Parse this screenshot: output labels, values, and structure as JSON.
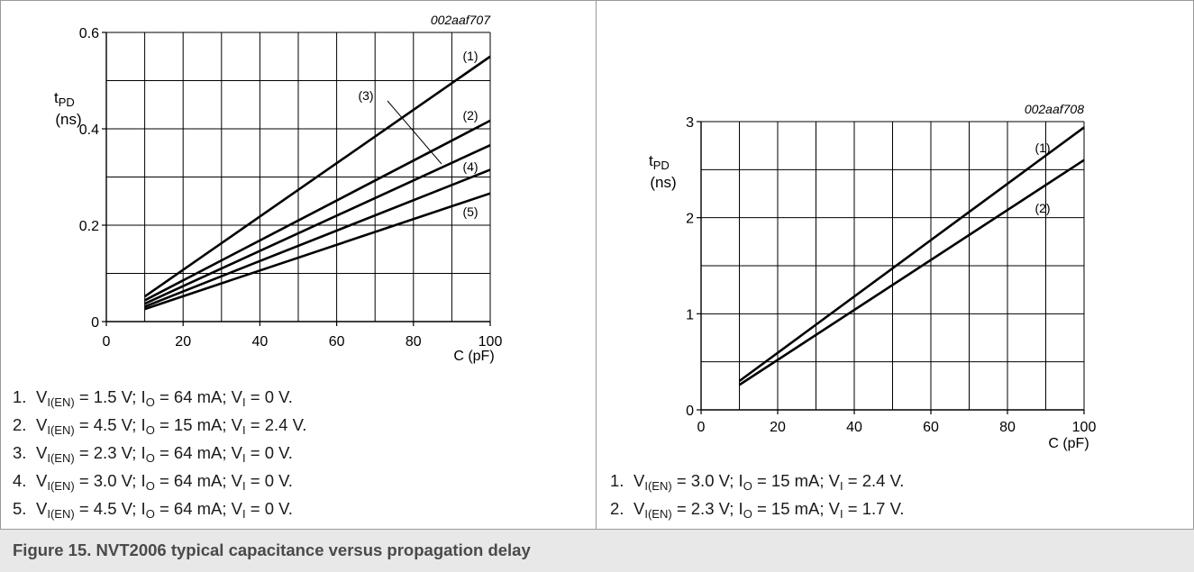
{
  "caption": "Figure 15.  NVT2006 typical capacitance versus propagation delay",
  "chart_data": [
    {
      "type": "line",
      "id_label": "002aaf707",
      "ylabel_main": "t",
      "ylabel_sub": "PD",
      "yunit": "(ns)",
      "xlabel": "C (pF)",
      "xlim": [
        0,
        100
      ],
      "ylim": [
        0,
        0.6
      ],
      "xticks": [
        0,
        20,
        40,
        60,
        80,
        100
      ],
      "yticks": [
        0,
        0.2,
        0.4,
        0.6
      ],
      "ytick_labels": [
        "0",
        "0.2",
        "0.4",
        "0.6"
      ],
      "grid": true,
      "series": [
        {
          "name": "(1)",
          "x": [
            10,
            100
          ],
          "y": [
            0.052,
            0.55
          ]
        },
        {
          "name": "(2)",
          "x": [
            10,
            100
          ],
          "y": [
            0.044,
            0.417
          ]
        },
        {
          "name": "(3)",
          "x": [
            10,
            100
          ],
          "y": [
            0.037,
            0.366
          ]
        },
        {
          "name": "(4)",
          "x": [
            10,
            100
          ],
          "y": [
            0.031,
            0.315
          ]
        },
        {
          "name": "(5)",
          "x": [
            10,
            100
          ],
          "y": [
            0.026,
            0.266
          ]
        }
      ],
      "legend": [
        [
          "1.",
          "V",
          "I(EN)",
          " = 1.5 V; I",
          "O",
          " = 64 mA; V",
          "I",
          " = 0 V."
        ],
        [
          "2.",
          "V",
          "I(EN)",
          " = 4.5 V; I",
          "O",
          " = 15 mA; V",
          "I",
          " = 2.4 V."
        ],
        [
          "3.",
          "V",
          "I(EN)",
          " = 2.3 V; I",
          "O",
          " = 64 mA; V",
          "I",
          " = 0 V."
        ],
        [
          "4.",
          "V",
          "I(EN)",
          " = 3.0 V; I",
          "O",
          " = 64 mA; V",
          "I",
          " = 0 V."
        ],
        [
          "5.",
          "V",
          "I(EN)",
          " = 4.5 V; I",
          "O",
          " = 64 mA; V",
          "I",
          " = 0 V."
        ]
      ]
    },
    {
      "type": "line",
      "id_label": "002aaf708",
      "ylabel_main": "t",
      "ylabel_sub": "PD",
      "yunit": "(ns)",
      "xlabel": "C (pF)",
      "xlim": [
        0,
        100
      ],
      "ylim": [
        0,
        3
      ],
      "xticks": [
        0,
        20,
        40,
        60,
        80,
        100
      ],
      "yticks": [
        0,
        1,
        2,
        3
      ],
      "ytick_labels": [
        "0",
        "1",
        "2",
        "3"
      ],
      "grid": true,
      "series": [
        {
          "name": "(1)",
          "x": [
            10,
            100
          ],
          "y": [
            0.3,
            2.94
          ]
        },
        {
          "name": "(2)",
          "x": [
            10,
            100
          ],
          "y": [
            0.26,
            2.6
          ]
        }
      ],
      "legend": [
        [
          "1.",
          "V",
          "I(EN)",
          " = 3.0 V; I",
          "O",
          " = 15 mA; V",
          "I",
          " = 2.4 V."
        ],
        [
          "2.",
          "V",
          "I(EN)",
          " = 2.3 V; I",
          "O",
          " = 15 mA; V",
          "I",
          " = 1.7 V."
        ]
      ]
    }
  ]
}
